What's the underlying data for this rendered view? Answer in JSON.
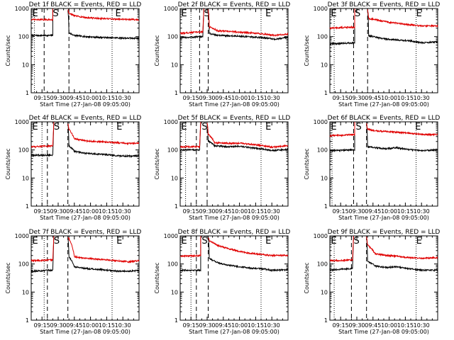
{
  "figure": {
    "background": "#ffffff",
    "axis_color": "#000000"
  },
  "shared": {
    "type": "line",
    "xlabel": "Start Time (27-Jan-08 09:05:00)",
    "ylabel": "Counts/sec",
    "x_tick_labels": [
      "09:15",
      "09:30",
      "09:45",
      "10:00",
      "10:15",
      "10:30"
    ],
    "x_ticks_min": [
      10,
      25,
      40,
      55,
      70,
      85
    ],
    "xlim_min": [
      0,
      100
    ],
    "yscale": "log",
    "ylim": [
      1,
      1000
    ],
    "y_tick_labels": [
      "1",
      "10",
      "100",
      "1000"
    ],
    "y_ticks": [
      1,
      10,
      100,
      1000
    ],
    "grid": false,
    "events_color": "#000000",
    "lld_color": "#e00000",
    "marker_S": "S",
    "marker_E": "E"
  },
  "chart_data": [
    {
      "title": "Det 1f BLACK = Events, RED = LLD",
      "type": "line",
      "vlines": {
        "dotted": [
          3,
          75
        ],
        "dashed": [
          12,
          35
        ]
      },
      "gap": [
        21,
        34
      ],
      "spike_at": 20,
      "markers": {
        "S": 20,
        "E": [
          1,
          78
        ]
      },
      "series": [
        {
          "name": "Events",
          "color": "#000000",
          "x": [
            0,
            20,
            34,
            40,
            50,
            60,
            70,
            80,
            90,
            100
          ],
          "y": [
            110,
            110,
            140,
            110,
            100,
            95,
            92,
            90,
            88,
            88
          ]
        },
        {
          "name": "LLD",
          "color": "#e00000",
          "x": [
            0,
            20,
            34,
            40,
            50,
            60,
            70,
            80,
            90,
            100
          ],
          "y": [
            400,
            400,
            700,
            550,
            480,
            450,
            430,
            420,
            410,
            400
          ]
        }
      ]
    },
    {
      "title": "Det 2f BLACK = Events, RED = LLD",
      "type": "line",
      "vlines": {
        "dotted": [
          10,
          75
        ],
        "dashed": [
          18,
          26
        ]
      },
      "gap": [
        22,
        26
      ],
      "spike_at": 22,
      "markers": {
        "S": 22,
        "E": [
          1,
          79
        ]
      },
      "series": [
        {
          "name": "Events",
          "color": "#000000",
          "x": [
            0,
            10,
            22,
            26,
            35,
            50,
            60,
            70,
            80,
            88,
            100
          ],
          "y": [
            90,
            95,
            100,
            130,
            110,
            105,
            100,
            95,
            90,
            80,
            95
          ]
        },
        {
          "name": "LLD",
          "color": "#e00000",
          "x": [
            0,
            10,
            22,
            26,
            35,
            50,
            60,
            70,
            80,
            88,
            100
          ],
          "y": [
            130,
            140,
            150,
            230,
            160,
            150,
            140,
            130,
            120,
            110,
            125
          ]
        }
      ]
    },
    {
      "title": "Det 3f BLACK = Events, RED = LLD",
      "type": "line",
      "vlines": {
        "dotted": [
          4,
          80
        ],
        "dashed": [
          22,
          35
        ]
      },
      "gap": [
        24,
        35
      ],
      "spike_at": 23,
      "markers": {
        "S": 23,
        "E": [
          1,
          80
        ]
      },
      "series": [
        {
          "name": "Events",
          "color": "#000000",
          "x": [
            0,
            23,
            35,
            45,
            55,
            65,
            75,
            85,
            100
          ],
          "y": [
            55,
            60,
            110,
            90,
            80,
            75,
            70,
            60,
            65
          ]
        },
        {
          "name": "LLD",
          "color": "#e00000",
          "x": [
            0,
            23,
            35,
            45,
            55,
            65,
            75,
            85,
            100
          ],
          "y": [
            200,
            220,
            450,
            380,
            320,
            290,
            260,
            240,
            240
          ]
        }
      ]
    },
    {
      "title": "Det 4f BLACK = Events, RED = LLD",
      "type": "line",
      "vlines": {
        "dotted": [
          10,
          75
        ],
        "dashed": [
          15,
          34
        ]
      },
      "gap": [
        21,
        34
      ],
      "spike_at": 21,
      "markers": {
        "S": 21,
        "E": [
          1,
          79
        ]
      },
      "series": [
        {
          "name": "Events",
          "color": "#000000",
          "x": [
            0,
            21,
            34,
            40,
            50,
            60,
            70,
            80,
            90,
            100
          ],
          "y": [
            65,
            65,
            150,
            90,
            75,
            72,
            68,
            62,
            60,
            62
          ]
        },
        {
          "name": "LLD",
          "color": "#e00000",
          "x": [
            0,
            21,
            34,
            40,
            50,
            60,
            70,
            80,
            90,
            100
          ],
          "y": [
            130,
            140,
            600,
            250,
            210,
            200,
            190,
            180,
            170,
            175
          ]
        }
      ]
    },
    {
      "title": "Det 5f BLACK = Events, RED = LLD",
      "type": "line",
      "vlines": {
        "dotted": [
          5,
          75
        ],
        "dashed": [
          15,
          25
        ]
      },
      "gap": [
        19,
        25
      ],
      "spike_at": 19,
      "markers": {
        "S": 20,
        "E": [
          1,
          79
        ]
      },
      "series": [
        {
          "name": "Events",
          "color": "#000000",
          "x": [
            0,
            19,
            25,
            32,
            45,
            55,
            65,
            75,
            85,
            100
          ],
          "y": [
            100,
            100,
            220,
            140,
            130,
            135,
            120,
            110,
            95,
            105
          ]
        },
        {
          "name": "LLD",
          "color": "#e00000",
          "x": [
            0,
            19,
            25,
            32,
            45,
            55,
            65,
            75,
            85,
            100
          ],
          "y": [
            130,
            130,
            400,
            180,
            170,
            175,
            160,
            145,
            125,
            140
          ]
        }
      ]
    },
    {
      "title": "Det 6f BLACK = Events, RED = LLD",
      "type": "line",
      "vlines": {
        "dotted": [
          2,
          80
        ],
        "dashed": [
          22,
          34
        ]
      },
      "gap": [
        24,
        34
      ],
      "spike_at": 23,
      "markers": {
        "S": 24,
        "E": [
          1,
          79
        ]
      },
      "series": [
        {
          "name": "Events",
          "color": "#000000",
          "x": [
            0,
            23,
            34,
            42,
            52,
            62,
            72,
            85,
            100
          ],
          "y": [
            95,
            100,
            130,
            120,
            110,
            120,
            105,
            95,
            100
          ]
        },
        {
          "name": "LLD",
          "color": "#e00000",
          "x": [
            0,
            23,
            34,
            42,
            52,
            62,
            72,
            85,
            100
          ],
          "y": [
            320,
            350,
            550,
            480,
            450,
            430,
            400,
            360,
            350
          ]
        }
      ]
    },
    {
      "title": "Det 7f BLACK = Events, RED = LLD",
      "type": "line",
      "vlines": {
        "dotted": [
          12,
          75
        ],
        "dashed": [
          15,
          34
        ]
      },
      "gap": [
        21,
        34
      ],
      "spike_at": 21,
      "markers": {
        "S": 21,
        "E": [
          1,
          79
        ]
      },
      "series": [
        {
          "name": "Events",
          "color": "#000000",
          "x": [
            0,
            21,
            34,
            40,
            50,
            60,
            70,
            80,
            90,
            100
          ],
          "y": [
            55,
            60,
            200,
            80,
            70,
            65,
            60,
            55,
            55,
            58
          ]
        },
        {
          "name": "LLD",
          "color": "#e00000",
          "x": [
            0,
            21,
            34,
            40,
            50,
            60,
            70,
            80,
            90,
            100
          ],
          "y": [
            130,
            140,
            900,
            180,
            160,
            150,
            140,
            130,
            120,
            130
          ]
        }
      ]
    },
    {
      "title": "Det 8f BLACK = Events, RED = LLD",
      "type": "line",
      "vlines": {
        "dotted": [
          10,
          75
        ],
        "dashed": [
          15,
          26
        ]
      },
      "gap": [
        20,
        26
      ],
      "spike_at": 19,
      "markers": {
        "S": 20,
        "E": [
          1,
          79
        ]
      },
      "series": [
        {
          "name": "Events",
          "color": "#000000",
          "x": [
            0,
            19,
            26,
            35,
            45,
            55,
            65,
            75,
            85,
            100
          ],
          "y": [
            60,
            60,
            160,
            110,
            90,
            80,
            72,
            68,
            60,
            62
          ]
        },
        {
          "name": "LLD",
          "color": "#e00000",
          "x": [
            0,
            19,
            26,
            35,
            45,
            55,
            65,
            75,
            85,
            100
          ],
          "y": [
            190,
            200,
            700,
            450,
            350,
            280,
            240,
            220,
            200,
            200
          ]
        }
      ]
    },
    {
      "title": "Det 9f BLACK = Events, RED = LLD",
      "type": "line",
      "vlines": {
        "dotted": [
          4,
          80
        ],
        "dashed": [
          20,
          34
        ]
      },
      "gap": [
        22,
        34
      ],
      "spike_at": 22,
      "markers": {
        "S": 22,
        "E": [
          1,
          80
        ]
      },
      "series": [
        {
          "name": "Events",
          "color": "#000000",
          "x": [
            0,
            22,
            34,
            42,
            52,
            62,
            72,
            85,
            100
          ],
          "y": [
            60,
            70,
            130,
            85,
            75,
            80,
            68,
            60,
            60
          ]
        },
        {
          "name": "LLD",
          "color": "#e00000",
          "x": [
            0,
            22,
            34,
            42,
            52,
            62,
            72,
            85,
            100
          ],
          "y": [
            130,
            140,
            500,
            230,
            200,
            190,
            170,
            160,
            170
          ]
        }
      ]
    }
  ]
}
